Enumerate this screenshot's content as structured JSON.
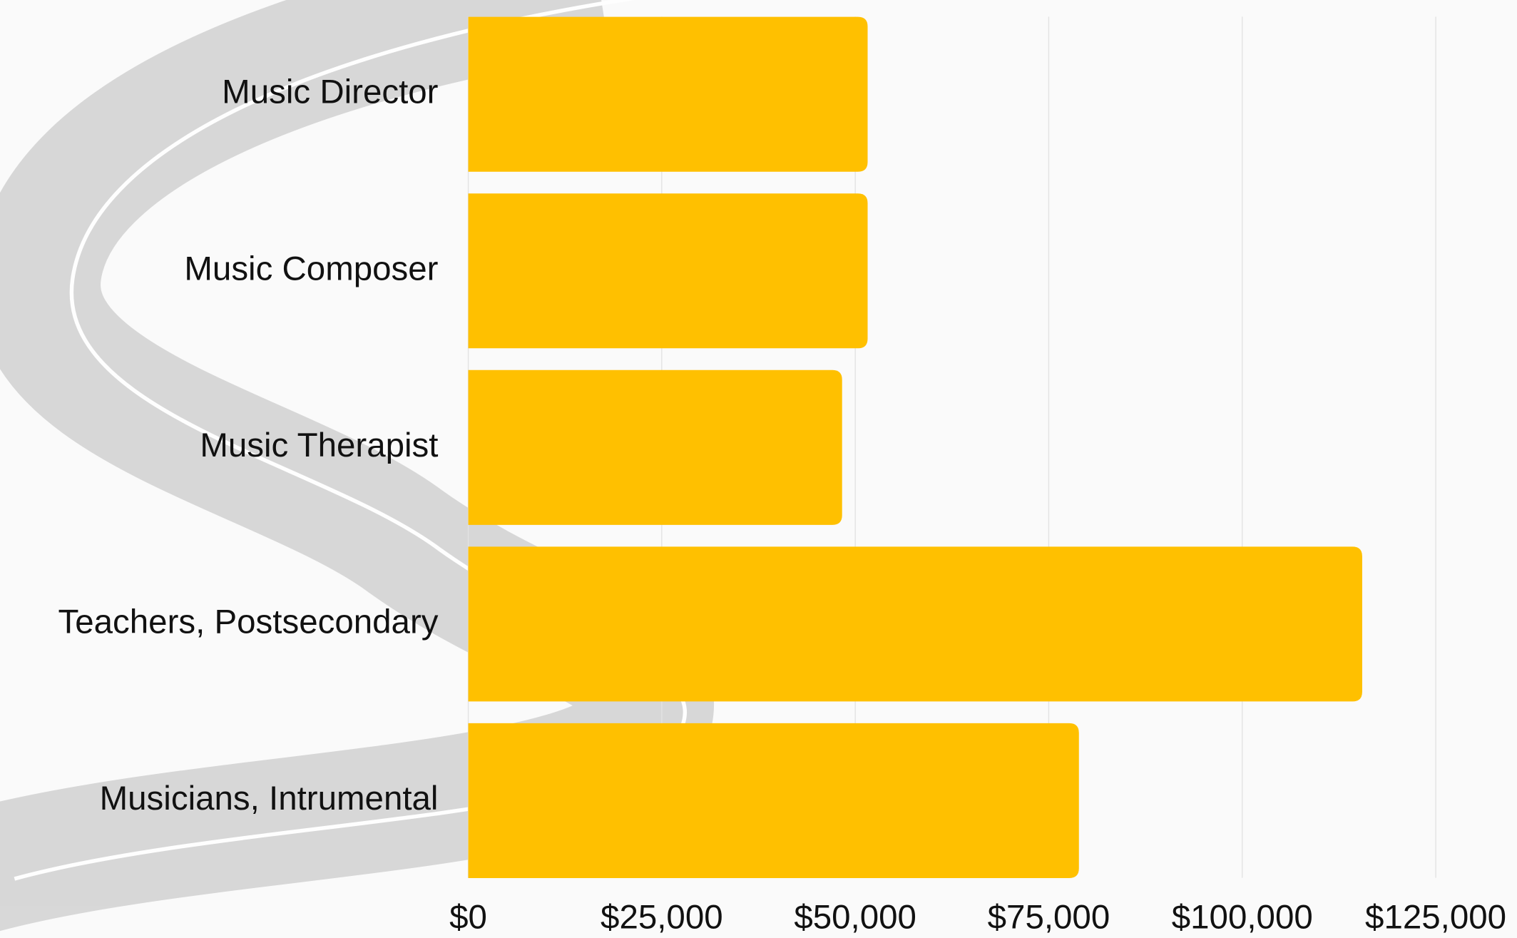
{
  "chart_data": {
    "type": "bar",
    "orientation": "horizontal",
    "categories": [
      "Music Director",
      "Music Composer",
      "Music Therapist",
      "Teachers, Postsecondary",
      "Musicians, Intrumental"
    ],
    "values": [
      51600,
      51600,
      48300,
      115500,
      78900
    ],
    "color": "#ffc000",
    "xlim": [
      0,
      125000
    ],
    "xticks": [
      {
        "value": 0,
        "label": "$0"
      },
      {
        "value": 25000,
        "label": "$25,000"
      },
      {
        "value": 50000,
        "label": "$50,000"
      },
      {
        "value": 75000,
        "label": "$75,000"
      },
      {
        "value": 100000,
        "label": "$100,000"
      },
      {
        "value": 125000,
        "label": "$125,000"
      }
    ],
    "grid": true
  }
}
